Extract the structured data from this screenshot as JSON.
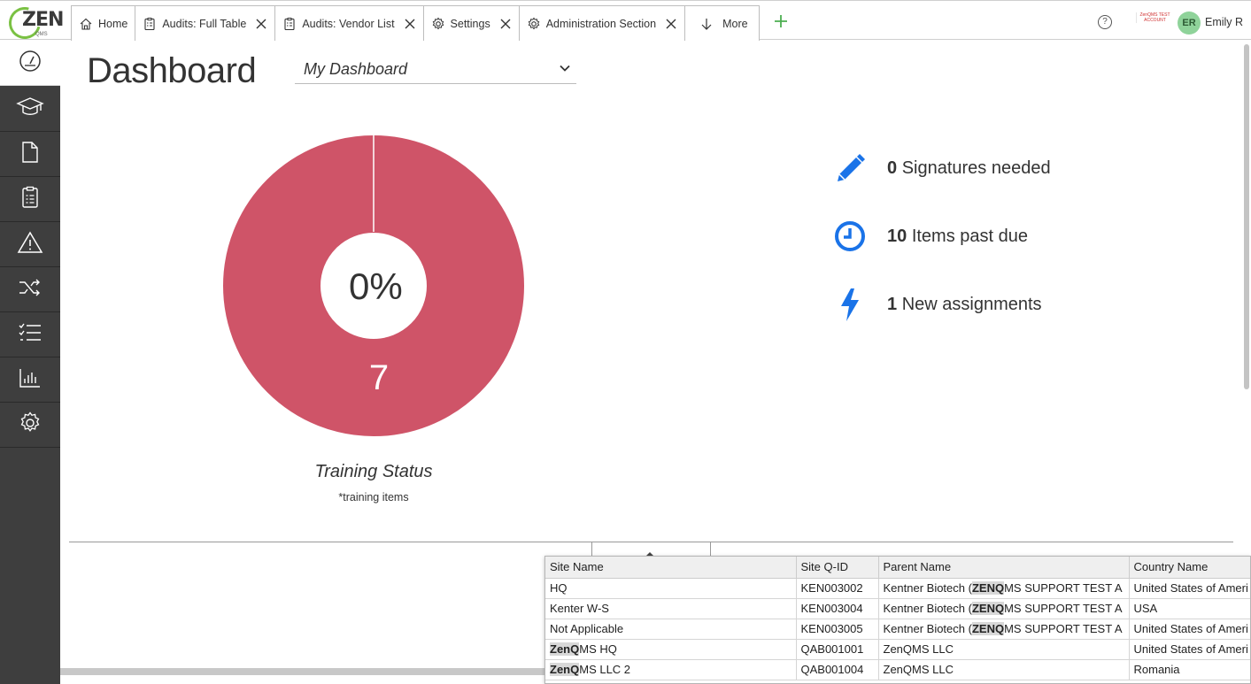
{
  "app": {
    "logo_text": "ZEN",
    "logo_sub": "QMS",
    "test_account": "ZenQMS TEST ACCOUNT"
  },
  "tabs": [
    {
      "label": "Home",
      "icon": "home-icon",
      "closable": false
    },
    {
      "label": "Audits: Full Table",
      "icon": "clipboard-icon",
      "closable": true
    },
    {
      "label": "Audits: Vendor List",
      "icon": "clipboard-icon",
      "closable": true
    },
    {
      "label": "Settings",
      "icon": "gear-icon",
      "closable": true
    },
    {
      "label": "Administration Section",
      "icon": "gear-icon",
      "closable": true
    },
    {
      "label": "More",
      "icon": "arrow-down-icon",
      "closable": false
    }
  ],
  "user": {
    "initials": "ER",
    "name": "Emily R"
  },
  "sidebar": {
    "items": [
      {
        "name": "dashboard",
        "icon": "gauge-icon",
        "active": true
      },
      {
        "name": "training",
        "icon": "graduation-cap-icon",
        "active": false
      },
      {
        "name": "documents",
        "icon": "document-icon",
        "active": false
      },
      {
        "name": "audits",
        "icon": "clipboard-icon",
        "active": false
      },
      {
        "name": "issues",
        "icon": "warning-icon",
        "active": false
      },
      {
        "name": "change-control",
        "icon": "shuffle-icon",
        "active": false
      },
      {
        "name": "tasks",
        "icon": "checklist-icon",
        "active": false
      },
      {
        "name": "reports",
        "icon": "bar-chart-icon",
        "active": false
      },
      {
        "name": "settings",
        "icon": "gear-icon",
        "active": false
      }
    ]
  },
  "main": {
    "title": "Dashboard",
    "dashboard_select": "My Dashboard",
    "training_chart": {
      "center_label": "0%",
      "count_label": "7",
      "title": "Training Status",
      "subtitle": "*training items",
      "color": "#cf5468"
    },
    "stats": [
      {
        "count": "0",
        "label": "Signatures needed",
        "icon": "pencil-icon"
      },
      {
        "count": "10",
        "label": "Items past due",
        "icon": "clock-icon"
      },
      {
        "count": "1",
        "label": "New assignments",
        "icon": "lightning-icon"
      }
    ],
    "accent_color": "#1a73e8"
  },
  "site_dropdown": {
    "columns": [
      "Site Name",
      "Site Q-ID",
      "Parent Name",
      "Country Name"
    ],
    "rows": [
      {
        "site_pre": "",
        "site_hl": "",
        "site_post": "HQ",
        "qid": "KEN003002",
        "parent_pre": "Kentner Biotech (",
        "parent_hl": "ZENQ",
        "parent_post": "MS SUPPORT TEST A",
        "country": "United States of Ameri"
      },
      {
        "site_pre": "",
        "site_hl": "",
        "site_post": "Kenter W-S",
        "qid": "KEN003004",
        "parent_pre": "Kentner Biotech (",
        "parent_hl": "ZENQ",
        "parent_post": "MS SUPPORT TEST A",
        "country": "USA"
      },
      {
        "site_pre": "",
        "site_hl": "",
        "site_post": "Not Applicable",
        "qid": "KEN003005",
        "parent_pre": "Kentner Biotech (",
        "parent_hl": "ZENQ",
        "parent_post": "MS SUPPORT TEST A",
        "country": "United States of Ameri"
      },
      {
        "site_pre": "",
        "site_hl": "ZenQ",
        "site_post": "MS HQ",
        "qid": "QAB001001",
        "parent_pre": "ZenQMS LLC",
        "parent_hl": "",
        "parent_post": "",
        "country": "United States of Ameri"
      },
      {
        "site_pre": "",
        "site_hl": "ZenQ",
        "site_post": "MS LLC 2",
        "qid": "QAB001004",
        "parent_pre": "ZenQMS LLC",
        "parent_hl": "",
        "parent_post": "",
        "country": "Romania"
      }
    ]
  }
}
